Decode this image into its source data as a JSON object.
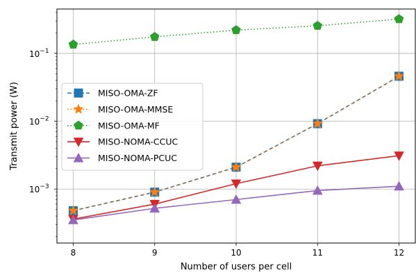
{
  "chart_data": {
    "type": "line",
    "xlabel": "Number of users per cell",
    "ylabel": "Transmit power (W)",
    "x": [
      8,
      9,
      10,
      11,
      12
    ],
    "xlim": [
      7.8,
      12.2
    ],
    "ylim": [
      0.00016,
      0.45
    ],
    "yscale": "log",
    "grid": true,
    "legend_position": "center-left",
    "x_ticks": [
      {
        "value": 8,
        "label": "8"
      },
      {
        "value": 9,
        "label": "9"
      },
      {
        "value": 10,
        "label": "10"
      },
      {
        "value": 11,
        "label": "11"
      },
      {
        "value": 12,
        "label": "12"
      }
    ],
    "y_ticks": [
      {
        "value": 0.001,
        "base": "10",
        "exp": "−3"
      },
      {
        "value": 0.01,
        "base": "10",
        "exp": "−2"
      },
      {
        "value": 0.1,
        "base": "10",
        "exp": "−1"
      }
    ],
    "series": [
      {
        "name": "MISO-OMA-ZF",
        "values": [
          0.00048,
          0.0009,
          0.0021,
          0.0092,
          0.046
        ],
        "color": "#1f77b4",
        "linestyle": "dashed",
        "marker": "square"
      },
      {
        "name": "MISO-OMA-MMSE",
        "values": [
          0.00048,
          0.0009,
          0.0021,
          0.0092,
          0.046
        ],
        "color": "#ff7f0e",
        "linestyle": "dotted",
        "marker": "star"
      },
      {
        "name": "MISO-OMA-MF",
        "values": [
          0.135,
          0.175,
          0.22,
          0.255,
          0.32
        ],
        "color": "#2ca02c",
        "linestyle": "dotted",
        "marker": "pentagon"
      },
      {
        "name": "MISO-NOMA-CCUC",
        "values": [
          0.00036,
          0.0006,
          0.0012,
          0.0022,
          0.0031
        ],
        "color": "#d62728",
        "linestyle": "solid",
        "marker": "triangle-down"
      },
      {
        "name": "MISO-NOMA-PCUC",
        "values": [
          0.00035,
          0.00052,
          0.0007,
          0.00095,
          0.0011
        ],
        "color": "#9467bd",
        "linestyle": "solid",
        "marker": "triangle-up"
      }
    ]
  }
}
